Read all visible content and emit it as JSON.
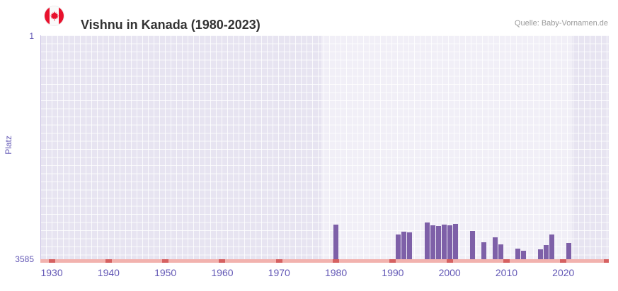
{
  "header": {
    "title": "Vishnu in Kanada (1980-2023)",
    "source": "Quelle: Baby-Vornamen.de",
    "flag_icon": "canada-flag"
  },
  "colors": {
    "bar": "#7e60a8",
    "plot_background": "#e7e4f1",
    "grid": "#ffffff",
    "highlight_band": "rgba(255,255,255,0.42)",
    "axis_text": "#6257b5",
    "baseline_band": "#f2b2ae",
    "baseline_tick": "#d66161",
    "title_text": "#333333",
    "source_text": "#9a9a9a",
    "flag_red": "#e8112d"
  },
  "chart_data": {
    "type": "bar",
    "title": "Vishnu in Kanada (1980-2023)",
    "xlabel": "",
    "ylabel": "Platz",
    "y_axis_inverted": true,
    "ylim": [
      1,
      3585
    ],
    "y_ticks": [
      {
        "label": "1",
        "value": 1
      },
      {
        "label": "3585",
        "value": 3585
      }
    ],
    "x_range": [
      1928,
      2028
    ],
    "x_ticks": [
      1930,
      1940,
      1950,
      1960,
      1970,
      1980,
      1990,
      2000,
      2010,
      2020
    ],
    "highlight_band_years": [
      1977.5,
      2021.5
    ],
    "grid": true,
    "legend": false,
    "series": [
      {
        "name": "Platz",
        "color": "#7e60a8",
        "points": [
          [
            1980,
            2980
          ],
          [
            1991,
            3140
          ],
          [
            1992,
            3090
          ],
          [
            1993,
            3110
          ],
          [
            1996,
            2950
          ],
          [
            1997,
            2990
          ],
          [
            1998,
            3010
          ],
          [
            1999,
            2985
          ],
          [
            2000,
            2995
          ],
          [
            2001,
            2970
          ],
          [
            2004,
            3080
          ],
          [
            2006,
            3260
          ],
          [
            2008,
            3180
          ],
          [
            2009,
            3300
          ],
          [
            2012,
            3360
          ],
          [
            2013,
            3400
          ],
          [
            2016,
            3370
          ],
          [
            2017,
            3310
          ],
          [
            2018,
            3140
          ],
          [
            2021,
            3270
          ]
        ]
      }
    ]
  }
}
